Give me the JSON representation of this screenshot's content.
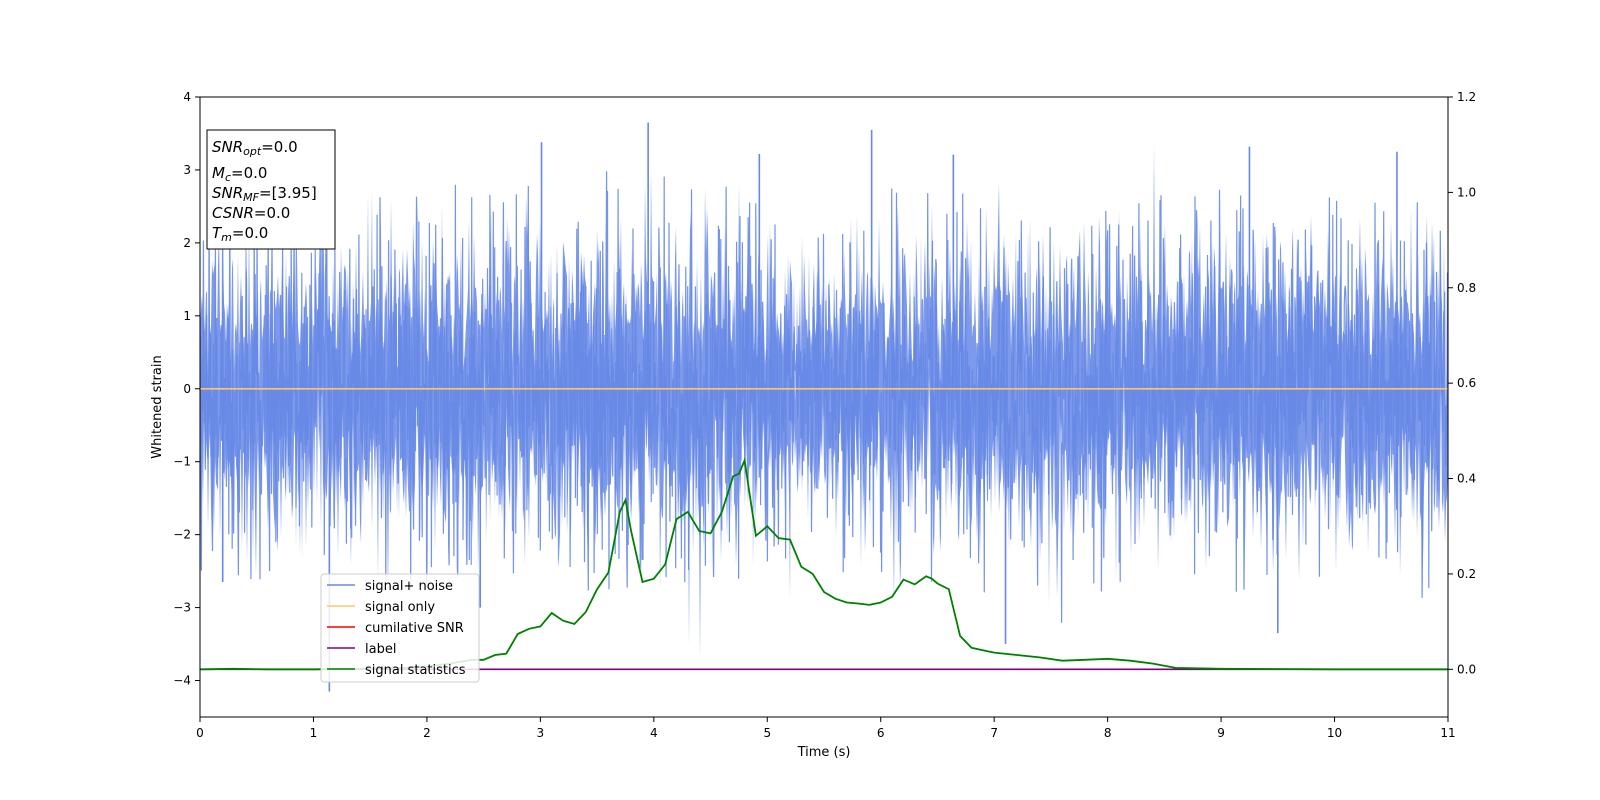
{
  "chart_data": {
    "type": "line",
    "xlabel": "Time (s)",
    "ylabel": "Whitened strain",
    "xlim": [
      0,
      11
    ],
    "ylim": [
      -4.5,
      4
    ],
    "y2lim": [
      -0.1,
      1.2
    ],
    "x_ticks": [
      "0",
      "1",
      "2",
      "3",
      "4",
      "5",
      "6",
      "7",
      "8",
      "9",
      "10",
      "11"
    ],
    "y_ticks": [
      "4",
      "3",
      "2",
      "1",
      "0",
      "−1",
      "−2",
      "−3",
      "−4"
    ],
    "y2_ticks": [
      "1.2",
      "1.0",
      "0.8",
      "0.6",
      "0.4",
      "0.2",
      "0.0"
    ],
    "info_box": [
      {
        "var": "SNR",
        "sub": "opt",
        "value": "=0.0"
      },
      {
        "var": "M",
        "sub": "c",
        "value": "=0.0"
      },
      {
        "var": "SNR",
        "sub": "MF",
        "value": "=[3.95]"
      },
      {
        "var": "CSNR",
        "sub": "",
        "value": "=0.0"
      },
      {
        "var": "T",
        "sub": "m",
        "value": "=0.0"
      }
    ],
    "legend": {
      "placement": "lower-left",
      "entries": [
        {
          "label": "signal+ noise",
          "color": "#6688e6"
        },
        {
          "label": "signal only",
          "color": "#ffc56b"
        },
        {
          "label": "cumilative SNR",
          "color": "#ff0000"
        },
        {
          "label": "label",
          "color": "#800080"
        },
        {
          "label": "signal statistics",
          "color": "#008000"
        }
      ]
    },
    "series": [
      {
        "name": "signal+ noise",
        "axis": "left",
        "color": "#6688e6",
        "style": "noise",
        "amplitude_sd": 0.9,
        "x_range": [
          0,
          11
        ],
        "peaks": [
          [
            3.95,
            3.65
          ],
          [
            5.92,
            3.55
          ],
          [
            3.01,
            3.38
          ],
          [
            4.93,
            3.22
          ],
          [
            6.64,
            3.21
          ],
          [
            9.25,
            3.32
          ],
          [
            10.55,
            3.25
          ],
          [
            1.14,
            -4.15
          ],
          [
            7.1,
            -3.5
          ],
          [
            9.5,
            -3.35
          ],
          [
            2.47,
            -3.0
          ],
          [
            0.2,
            -2.65
          ]
        ]
      },
      {
        "name": "signal only",
        "axis": "left",
        "color": "#ffc56b",
        "x": [
          0,
          11
        ],
        "y": [
          0,
          0
        ]
      },
      {
        "name": "label",
        "axis": "right",
        "color": "#800080",
        "x": [
          0,
          11
        ],
        "y": [
          0,
          0
        ]
      },
      {
        "name": "signal statistics",
        "axis": "right",
        "color": "#008000",
        "x": [
          0,
          0.3,
          0.6,
          1.0,
          1.4,
          1.8,
          2.0,
          2.2,
          2.4,
          2.5,
          2.6,
          2.7,
          2.8,
          2.9,
          3.0,
          3.1,
          3.2,
          3.3,
          3.4,
          3.5,
          3.6,
          3.7,
          3.75,
          3.8,
          3.9,
          4.0,
          4.1,
          4.2,
          4.3,
          4.4,
          4.5,
          4.6,
          4.7,
          4.75,
          4.8,
          4.9,
          5.0,
          5.1,
          5.2,
          5.3,
          5.4,
          5.5,
          5.6,
          5.7,
          5.8,
          5.9,
          6.0,
          6.1,
          6.2,
          6.3,
          6.4,
          6.45,
          6.5,
          6.6,
          6.7,
          6.8,
          6.9,
          7.0,
          7.2,
          7.4,
          7.6,
          7.8,
          8.0,
          8.2,
          8.4,
          8.6,
          9.0,
          10.0,
          11.0
        ],
        "y": [
          0.0,
          0.001,
          0.0,
          0.0,
          0.001,
          0.003,
          0.006,
          0.012,
          0.02,
          0.02,
          0.03,
          0.033,
          0.074,
          0.085,
          0.09,
          0.118,
          0.102,
          0.095,
          0.12,
          0.168,
          0.203,
          0.33,
          0.355,
          0.29,
          0.183,
          0.19,
          0.22,
          0.315,
          0.33,
          0.29,
          0.285,
          0.33,
          0.405,
          0.41,
          0.438,
          0.28,
          0.3,
          0.275,
          0.272,
          0.215,
          0.2,
          0.162,
          0.148,
          0.14,
          0.138,
          0.135,
          0.14,
          0.152,
          0.188,
          0.178,
          0.195,
          0.19,
          0.18,
          0.168,
          0.07,
          0.045,
          0.04,
          0.035,
          0.03,
          0.025,
          0.018,
          0.02,
          0.022,
          0.018,
          0.012,
          0.003,
          0.001,
          0.0,
          0.0
        ]
      }
    ]
  }
}
